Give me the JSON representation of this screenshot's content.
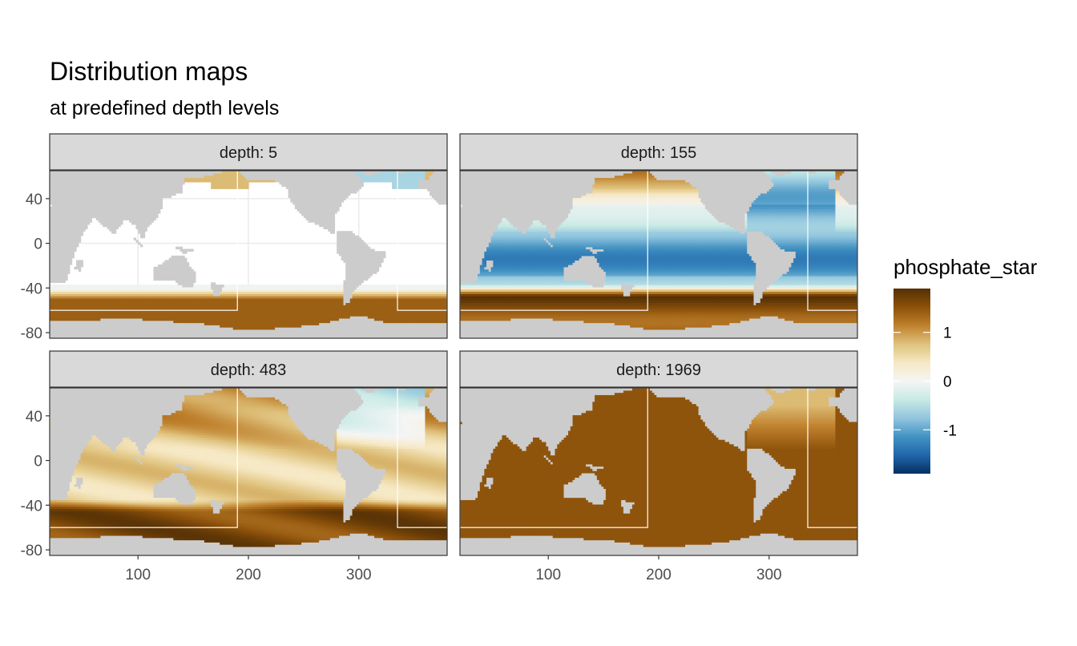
{
  "chart_data": {
    "type": "heatmap",
    "title": "Distribution maps",
    "subtitle": "at predefined depth levels",
    "facet_label_prefix": "depth: ",
    "panels": [
      {
        "depth": 5,
        "label": "depth: 5",
        "field": {
          "south": 1.4,
          "north": -0.6,
          "equator": -0.05,
          "front_lat": -50,
          "north_pacific": 0.8,
          "north_atlantic": -0.6,
          "mode": "surface"
        }
      },
      {
        "depth": 155,
        "label": "depth: 155",
        "field": {
          "south": 1.6,
          "north": 0.6,
          "equator": -0.8,
          "front_lat": -47,
          "north_pacific": 1.0,
          "north_atlantic": -0.7,
          "mode": "thermocline"
        }
      },
      {
        "depth": 483,
        "label": "depth: 483",
        "field": {
          "south": 1.6,
          "north": 0.9,
          "equator": 0.6,
          "front_lat": -45,
          "north_pacific": 1.1,
          "north_atlantic": -0.5,
          "mode": "intermediate"
        }
      },
      {
        "depth": 1969,
        "label": "depth: 1969",
        "field": {
          "south": 1.5,
          "north": 1.5,
          "equator": 1.5,
          "front_lat": -40,
          "north_pacific": 1.5,
          "north_atlantic": 0.8,
          "mode": "deep"
        }
      }
    ],
    "x_ticks": [
      100,
      200,
      300
    ],
    "y_ticks": [
      40,
      0,
      -40,
      -80
    ],
    "xlim": [
      20,
      380
    ],
    "ylim": [
      -85,
      65
    ],
    "grid": true,
    "section_boxes": [
      {
        "lon": [
          20,
          190
        ],
        "lat": [
          -60,
          65
        ]
      },
      {
        "lon": [
          335,
          380
        ],
        "lat": [
          -60,
          65
        ]
      }
    ],
    "legend": {
      "title": "phosphate_star",
      "ticks": [
        1,
        0,
        -1
      ],
      "limits": [
        -1.9,
        1.9
      ],
      "position": "right",
      "colors": [
        "#543005",
        "#8c510a",
        "#bf812d",
        "#dfc27d",
        "#f6e8c3",
        "#f5f5f5",
        "#c7eae5",
        "#92c5de",
        "#4393c3",
        "#2166ac",
        "#053061"
      ]
    },
    "land_color": "#cccccc",
    "missing_color": "#ffffff"
  }
}
